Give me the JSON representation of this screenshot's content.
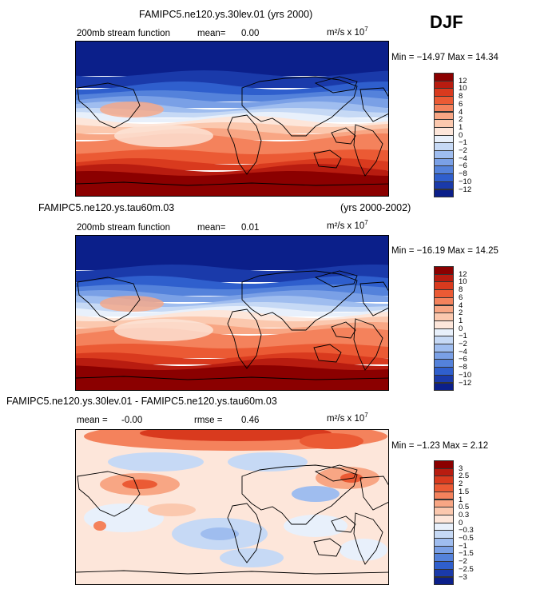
{
  "season": "DJF",
  "panels": [
    {
      "title": "FAMIPC5.ne120.ys.30lev.01 (yrs 2000)",
      "title_right": "",
      "left_label": "200mb stream function",
      "stat1": "mean=",
      "stat1_value": "0.00",
      "stat2": "",
      "stat2_value": "",
      "units": "m²/s x 10",
      "units_exp": "7",
      "minmax": "Min = −14.97  Max =   14.34",
      "levels": [
        "12",
        "10",
        "8",
        "6",
        "4",
        "2",
        "1",
        "0",
        "−1",
        "−2",
        "−4",
        "−6",
        "−8",
        "−10",
        "−12"
      ],
      "colors": [
        "#8b0000",
        "#b81c10",
        "#d93a1e",
        "#eb5a34",
        "#f4825c",
        "#f8a684",
        "#fbc8ae",
        "#fde6da",
        "#e8f0fb",
        "#c6d9f5",
        "#9fbdef",
        "#7aa0e6",
        "#5482db",
        "#2f5fcd",
        "#1a3aaa",
        "#0b1f8a"
      ]
    },
    {
      "title": "FAMIPC5.ne120.ys.tau60m.03",
      "title_right": "(yrs 2000-2002)",
      "left_label": "200mb stream function",
      "stat1": "mean=",
      "stat1_value": "0.01",
      "stat2": "",
      "stat2_value": "",
      "units": "m²/s x 10",
      "units_exp": "7",
      "minmax": "Min = −16.19  Max =   14.25",
      "levels": [
        "12",
        "10",
        "8",
        "6",
        "4",
        "2",
        "1",
        "0",
        "−1",
        "−2",
        "−4",
        "−6",
        "−8",
        "−10",
        "−12"
      ],
      "colors": [
        "#8b0000",
        "#b81c10",
        "#d93a1e",
        "#eb5a34",
        "#f4825c",
        "#f8a684",
        "#fbc8ae",
        "#fde6da",
        "#e8f0fb",
        "#c6d9f5",
        "#9fbdef",
        "#7aa0e6",
        "#5482db",
        "#2f5fcd",
        "#1a3aaa",
        "#0b1f8a"
      ]
    },
    {
      "title": "FAMIPC5.ne120.ys.30lev.01 - FAMIPC5.ne120.ys.tau60m.03",
      "title_right": "",
      "left_label": "mean =",
      "stat1": "",
      "stat1_value": "-0.00",
      "stat2": "rmse =",
      "stat2_value": "0.46",
      "units": "m²/s x 10",
      "units_exp": "7",
      "minmax": "Min =  −1.23  Max =    2.12",
      "levels": [
        "3",
        "2.5",
        "2",
        "1.5",
        "1",
        "0.5",
        "0.3",
        "0",
        "−0.3",
        "−0.5",
        "−1",
        "−1.5",
        "−2",
        "−2.5",
        "−3"
      ],
      "colors": [
        "#8b0000",
        "#b81c10",
        "#d93a1e",
        "#eb5a34",
        "#f4825c",
        "#f8a684",
        "#fbc8ae",
        "#fde6da",
        "#e8f0fb",
        "#c6d9f5",
        "#9fbdef",
        "#7aa0e6",
        "#5482db",
        "#2f5fcd",
        "#1a3aaa",
        "#0b1f8a"
      ]
    }
  ]
}
